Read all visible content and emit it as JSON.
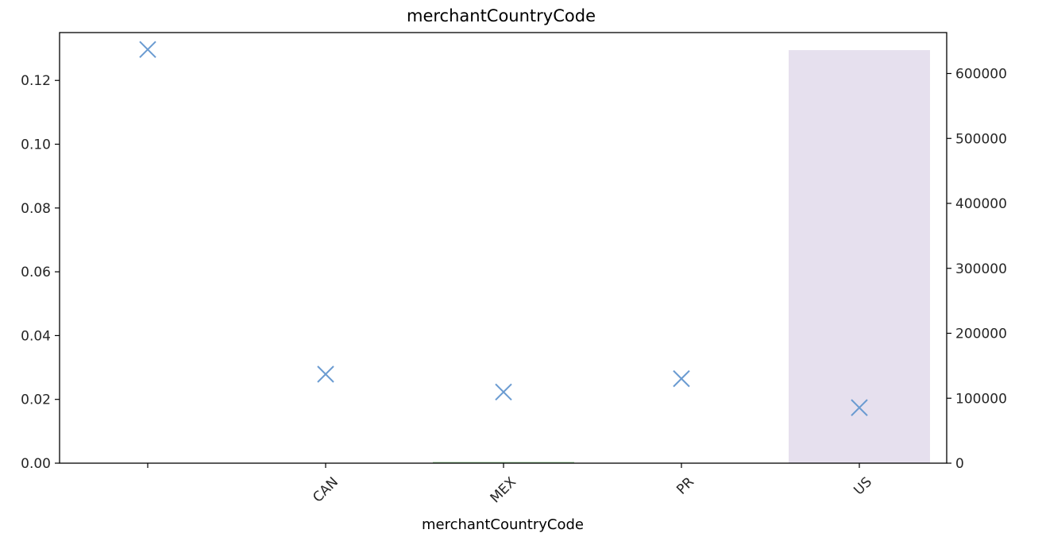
{
  "chart_data": {
    "type": "bar",
    "title": "merchantCountryCode",
    "xlabel": "merchantCountryCode",
    "ylabel": "",
    "ylabel_right": "",
    "categories": [
      "",
      "CAN",
      "MEX",
      "PR",
      "US"
    ],
    "series": [
      {
        "kind": "bar",
        "axis": "right",
        "color": "#e6e0ee",
        "values": [
          0,
          0,
          1500,
          0,
          636000
        ]
      },
      {
        "kind": "scatter",
        "axis": "left",
        "marker": "x",
        "color": "#6a9bd1",
        "values": [
          0.1297,
          0.0279,
          0.0223,
          0.0265,
          0.0174
        ]
      }
    ],
    "ylim": [
      0,
      0.135
    ],
    "ylim_right": [
      0,
      663000
    ],
    "yticks_left": [
      "0.00",
      "0.02",
      "0.04",
      "0.06",
      "0.08",
      "0.10",
      "0.12"
    ],
    "yticks_right": [
      "0",
      "100000",
      "200000",
      "300000",
      "400000",
      "500000",
      "600000"
    ],
    "grid": false,
    "legend": "none"
  }
}
